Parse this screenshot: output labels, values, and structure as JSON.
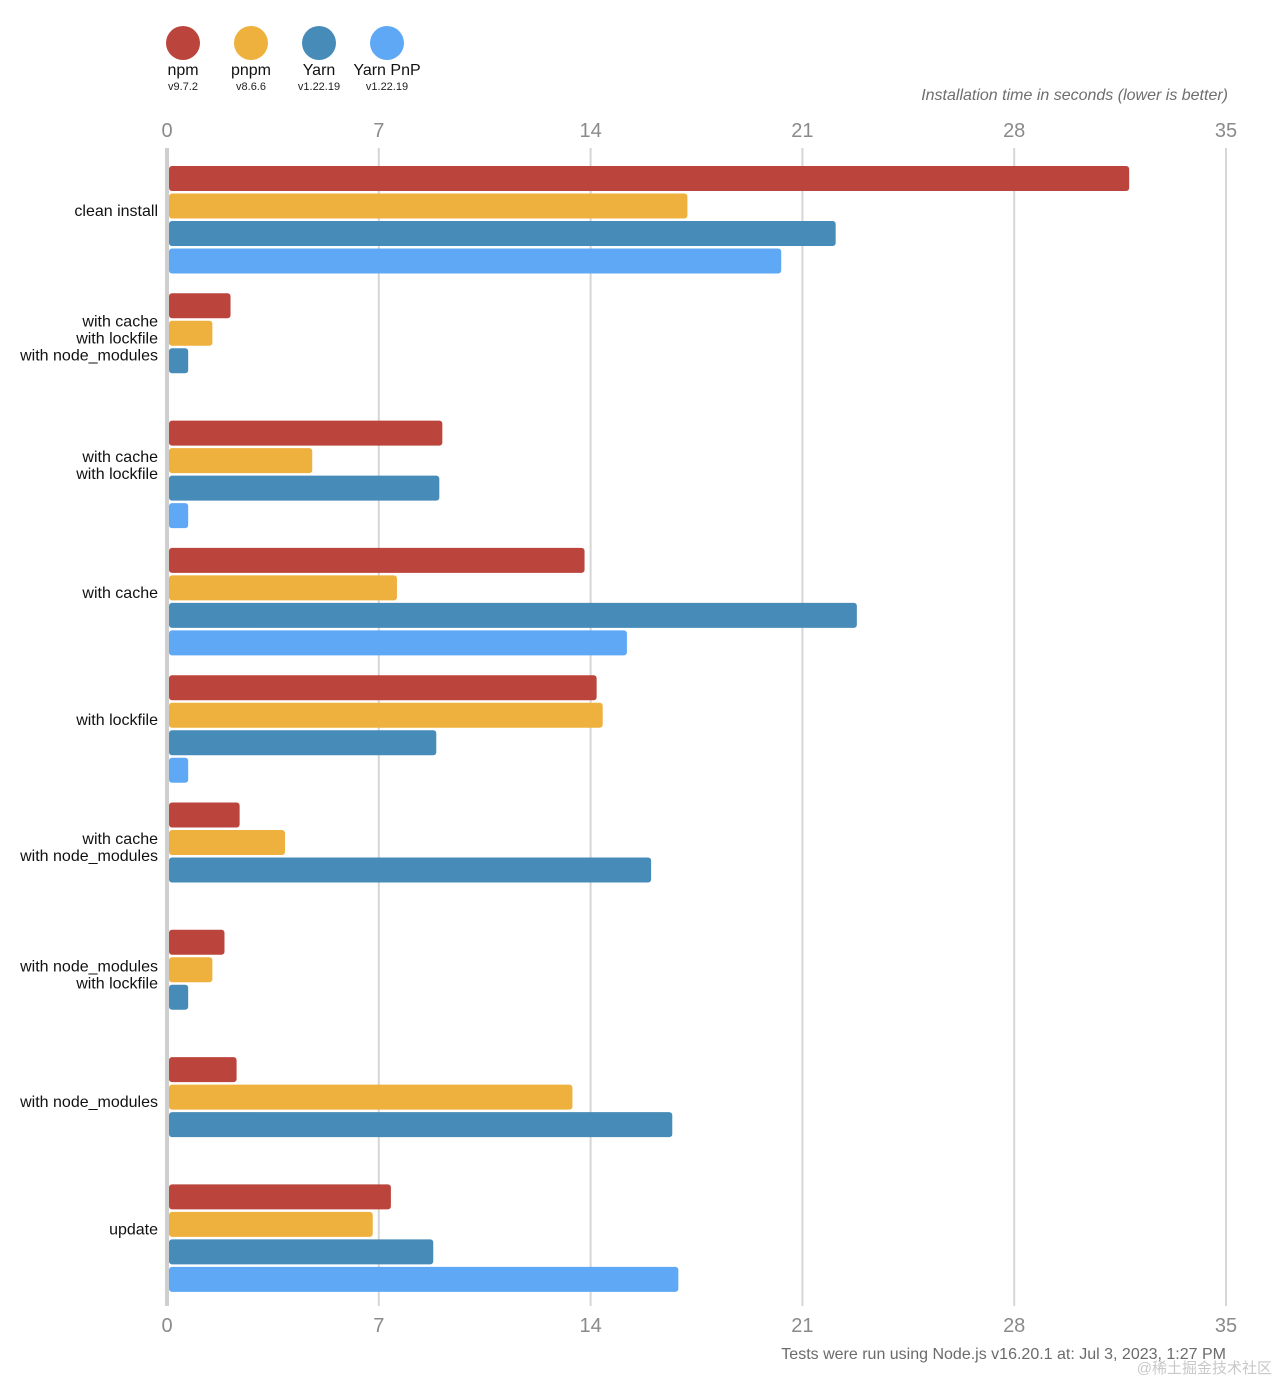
{
  "chart_data": {
    "type": "bar",
    "orientation": "horizontal",
    "title": "",
    "xlabel": "Installation time in seconds (lower is better)",
    "ylabel": "",
    "xlim": [
      0,
      35
    ],
    "xticks": [
      0,
      7,
      14,
      21,
      28,
      35
    ],
    "grid": true,
    "legend_position": "top-left",
    "categories": [
      [
        "clean install"
      ],
      [
        "with cache",
        "with lockfile",
        "with node_modules"
      ],
      [
        "with cache",
        "with lockfile"
      ],
      [
        "with cache"
      ],
      [
        "with lockfile"
      ],
      [
        "with cache",
        "with node_modules"
      ],
      [
        "with node_modules",
        "with lockfile"
      ],
      [
        "with node_modules"
      ],
      [
        "update"
      ]
    ],
    "series": [
      {
        "name": "npm",
        "version": "v9.7.2",
        "color": "#bb453c",
        "values": [
          31.8,
          2.1,
          9.1,
          13.8,
          14.2,
          2.4,
          1.9,
          2.3,
          7.4
        ]
      },
      {
        "name": "pnpm",
        "version": "v8.6.6",
        "color": "#efb13e",
        "values": [
          17.2,
          1.5,
          4.8,
          7.6,
          14.4,
          3.9,
          1.5,
          13.4,
          6.8
        ]
      },
      {
        "name": "Yarn",
        "version": "v1.22.19",
        "color": "#478bb8",
        "values": [
          22.1,
          0.7,
          9.0,
          22.8,
          8.9,
          16.0,
          0.7,
          16.7,
          8.8
        ]
      },
      {
        "name": "Yarn PnP",
        "version": "v1.22.19",
        "color": "#5ea8f5",
        "values": [
          20.3,
          null,
          0.7,
          15.2,
          0.7,
          null,
          null,
          null,
          16.9
        ]
      }
    ]
  },
  "footer": "Tests were run using Node.js v16.20.1 at: Jul 3, 2023, 1:27 PM",
  "watermark": "@稀土掘金技术社区"
}
